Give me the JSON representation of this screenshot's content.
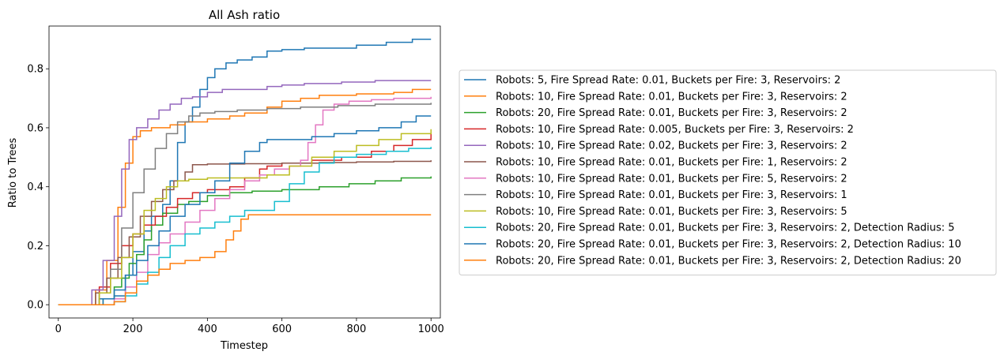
{
  "chart_data": {
    "type": "line",
    "title": "All Ash ratio",
    "xlabel": "Timestep",
    "ylabel": "Ratio to Trees",
    "xlim": [
      -25,
      1025
    ],
    "ylim": [
      -0.045,
      0.945
    ],
    "xticks": [
      "0",
      "200",
      "400",
      "600",
      "800",
      "1000"
    ],
    "yticks": [
      "0.0",
      "0.2",
      "0.4",
      "0.6",
      "0.8"
    ],
    "legend_position": "right, outside plot area",
    "grid": false,
    "series": [
      {
        "name": "Robots: 5, Fire Spread Rate: 0.01, Buckets per Fire: 3, Reservoirs: 2",
        "color": "#1f77b4",
        "points": [
          [
            0,
            0
          ],
          [
            80,
            0
          ],
          [
            110,
            0.02
          ],
          [
            150,
            0.03
          ],
          [
            180,
            0.1
          ],
          [
            200,
            0.18
          ],
          [
            230,
            0.25
          ],
          [
            250,
            0.3
          ],
          [
            280,
            0.34
          ],
          [
            300,
            0.42
          ],
          [
            320,
            0.55
          ],
          [
            340,
            0.62
          ],
          [
            360,
            0.67
          ],
          [
            380,
            0.73
          ],
          [
            400,
            0.77
          ],
          [
            420,
            0.8
          ],
          [
            450,
            0.82
          ],
          [
            480,
            0.83
          ],
          [
            520,
            0.84
          ],
          [
            560,
            0.86
          ],
          [
            600,
            0.865
          ],
          [
            660,
            0.87
          ],
          [
            720,
            0.87
          ],
          [
            800,
            0.88
          ],
          [
            880,
            0.89
          ],
          [
            950,
            0.9
          ],
          [
            1000,
            0.9
          ]
        ]
      },
      {
        "name": "Robots: 10, Fire Spread Rate: 0.01, Buckets per Fire: 3, Reservoirs: 2",
        "color": "#ff7f0e",
        "points": [
          [
            0,
            0
          ],
          [
            70,
            0
          ],
          [
            100,
            0.05
          ],
          [
            130,
            0.15
          ],
          [
            160,
            0.33
          ],
          [
            180,
            0.48
          ],
          [
            200,
            0.57
          ],
          [
            220,
            0.59
          ],
          [
            250,
            0.6
          ],
          [
            300,
            0.61
          ],
          [
            340,
            0.62
          ],
          [
            400,
            0.63
          ],
          [
            460,
            0.64
          ],
          [
            500,
            0.65
          ],
          [
            560,
            0.67
          ],
          [
            600,
            0.69
          ],
          [
            650,
            0.7
          ],
          [
            700,
            0.71
          ],
          [
            800,
            0.715
          ],
          [
            900,
            0.72
          ],
          [
            950,
            0.73
          ],
          [
            1000,
            0.73
          ]
        ]
      },
      {
        "name": "Robots: 20, Fire Spread Rate: 0.01, Buckets per Fire: 3, Reservoirs: 2",
        "color": "#2ca02c",
        "points": [
          [
            0,
            0
          ],
          [
            80,
            0
          ],
          [
            120,
            0.02
          ],
          [
            150,
            0.06
          ],
          [
            170,
            0.09
          ],
          [
            190,
            0.14
          ],
          [
            210,
            0.17
          ],
          [
            230,
            0.22
          ],
          [
            250,
            0.27
          ],
          [
            280,
            0.31
          ],
          [
            320,
            0.34
          ],
          [
            350,
            0.35
          ],
          [
            400,
            0.37
          ],
          [
            460,
            0.38
          ],
          [
            520,
            0.385
          ],
          [
            600,
            0.39
          ],
          [
            700,
            0.4
          ],
          [
            780,
            0.41
          ],
          [
            850,
            0.42
          ],
          [
            920,
            0.43
          ],
          [
            1000,
            0.435
          ]
        ]
      },
      {
        "name": "Robots: 10, Fire Spread Rate: 0.005, Buckets per Fire: 3, Reservoirs: 2",
        "color": "#d62728",
        "points": [
          [
            0,
            0
          ],
          [
            80,
            0
          ],
          [
            110,
            0.06
          ],
          [
            140,
            0.14
          ],
          [
            170,
            0.2
          ],
          [
            200,
            0.24
          ],
          [
            230,
            0.27
          ],
          [
            260,
            0.3
          ],
          [
            290,
            0.33
          ],
          [
            320,
            0.36
          ],
          [
            360,
            0.38
          ],
          [
            400,
            0.39
          ],
          [
            460,
            0.4
          ],
          [
            500,
            0.43
          ],
          [
            540,
            0.46
          ],
          [
            560,
            0.47
          ],
          [
            600,
            0.48
          ],
          [
            680,
            0.49
          ],
          [
            760,
            0.5
          ],
          [
            840,
            0.52
          ],
          [
            900,
            0.54
          ],
          [
            950,
            0.56
          ],
          [
            1000,
            0.58
          ]
        ]
      },
      {
        "name": "Robots: 10, Fire Spread Rate: 0.02, Buckets per Fire: 3, Reservoirs: 2",
        "color": "#9467bd",
        "points": [
          [
            0,
            0
          ],
          [
            60,
            0
          ],
          [
            90,
            0.05
          ],
          [
            120,
            0.15
          ],
          [
            150,
            0.3
          ],
          [
            170,
            0.46
          ],
          [
            190,
            0.56
          ],
          [
            210,
            0.6
          ],
          [
            240,
            0.63
          ],
          [
            270,
            0.66
          ],
          [
            300,
            0.68
          ],
          [
            330,
            0.7
          ],
          [
            360,
            0.705
          ],
          [
            400,
            0.72
          ],
          [
            440,
            0.73
          ],
          [
            500,
            0.73
          ],
          [
            560,
            0.74
          ],
          [
            600,
            0.745
          ],
          [
            660,
            0.75
          ],
          [
            760,
            0.755
          ],
          [
            850,
            0.76
          ],
          [
            1000,
            0.76
          ]
        ]
      },
      {
        "name": "Robots: 10, Fire Spread Rate: 0.01, Buckets per Fire: 1, Reservoirs: 2",
        "color": "#8c564b",
        "points": [
          [
            0,
            0
          ],
          [
            70,
            0
          ],
          [
            100,
            0.04
          ],
          [
            130,
            0.09
          ],
          [
            160,
            0.16
          ],
          [
            190,
            0.23
          ],
          [
            220,
            0.3
          ],
          [
            250,
            0.35
          ],
          [
            280,
            0.39
          ],
          [
            310,
            0.42
          ],
          [
            340,
            0.45
          ],
          [
            360,
            0.475
          ],
          [
            400,
            0.477
          ],
          [
            500,
            0.478
          ],
          [
            600,
            0.48
          ],
          [
            700,
            0.482
          ],
          [
            800,
            0.484
          ],
          [
            900,
            0.486
          ],
          [
            1000,
            0.49
          ]
        ]
      },
      {
        "name": "Robots: 10, Fire Spread Rate: 0.01, Buckets per Fire: 5, Reservoirs: 2",
        "color": "#e377c2",
        "points": [
          [
            0,
            0
          ],
          [
            100,
            0
          ],
          [
            150,
            0.02
          ],
          [
            180,
            0.06
          ],
          [
            210,
            0.11
          ],
          [
            240,
            0.17
          ],
          [
            270,
            0.21
          ],
          [
            300,
            0.24
          ],
          [
            340,
            0.28
          ],
          [
            380,
            0.32
          ],
          [
            420,
            0.36
          ],
          [
            460,
            0.39
          ],
          [
            500,
            0.42
          ],
          [
            540,
            0.44
          ],
          [
            580,
            0.46
          ],
          [
            620,
            0.47
          ],
          [
            650,
            0.49
          ],
          [
            670,
            0.55
          ],
          [
            690,
            0.61
          ],
          [
            710,
            0.66
          ],
          [
            740,
            0.68
          ],
          [
            780,
            0.69
          ],
          [
            840,
            0.695
          ],
          [
            900,
            0.7
          ],
          [
            1000,
            0.705
          ]
        ]
      },
      {
        "name": "Robots: 10, Fire Spread Rate: 0.01, Buckets per Fire: 3, Reservoirs: 1",
        "color": "#7f7f7f",
        "points": [
          [
            0,
            0
          ],
          [
            80,
            0
          ],
          [
            110,
            0.04
          ],
          [
            140,
            0.12
          ],
          [
            170,
            0.26
          ],
          [
            200,
            0.38
          ],
          [
            230,
            0.46
          ],
          [
            260,
            0.53
          ],
          [
            290,
            0.58
          ],
          [
            320,
            0.62
          ],
          [
            350,
            0.64
          ],
          [
            380,
            0.65
          ],
          [
            420,
            0.655
          ],
          [
            480,
            0.66
          ],
          [
            560,
            0.665
          ],
          [
            650,
            0.67
          ],
          [
            750,
            0.675
          ],
          [
            850,
            0.68
          ],
          [
            1000,
            0.685
          ]
        ]
      },
      {
        "name": "Robots: 10, Fire Spread Rate: 0.01, Buckets per Fire: 3, Reservoirs: 5",
        "color": "#bcbd22",
        "points": [
          [
            0,
            0
          ],
          [
            80,
            0
          ],
          [
            110,
            0.04
          ],
          [
            140,
            0.09
          ],
          [
            170,
            0.16
          ],
          [
            200,
            0.24
          ],
          [
            230,
            0.32
          ],
          [
            260,
            0.36
          ],
          [
            290,
            0.4
          ],
          [
            320,
            0.42
          ],
          [
            350,
            0.425
          ],
          [
            400,
            0.43
          ],
          [
            480,
            0.43
          ],
          [
            560,
            0.44
          ],
          [
            620,
            0.47
          ],
          [
            680,
            0.5
          ],
          [
            740,
            0.52
          ],
          [
            800,
            0.54
          ],
          [
            860,
            0.56
          ],
          [
            920,
            0.58
          ],
          [
            1000,
            0.595
          ]
        ]
      },
      {
        "name": "Robots: 20, Fire Spread Rate: 0.01, Buckets per Fire: 3, Reservoirs: 2, Detection Radius: 5",
        "color": "#17becf",
        "points": [
          [
            0,
            0
          ],
          [
            100,
            0
          ],
          [
            150,
            0.01
          ],
          [
            180,
            0.03
          ],
          [
            210,
            0.07
          ],
          [
            240,
            0.11
          ],
          [
            270,
            0.16
          ],
          [
            300,
            0.2
          ],
          [
            340,
            0.24
          ],
          [
            380,
            0.26
          ],
          [
            420,
            0.28
          ],
          [
            460,
            0.3
          ],
          [
            500,
            0.32
          ],
          [
            560,
            0.32
          ],
          [
            580,
            0.35
          ],
          [
            620,
            0.41
          ],
          [
            660,
            0.45
          ],
          [
            700,
            0.48
          ],
          [
            740,
            0.5
          ],
          [
            800,
            0.51
          ],
          [
            880,
            0.52
          ],
          [
            940,
            0.53
          ],
          [
            1000,
            0.535
          ]
        ]
      },
      {
        "name": "Robots: 20, Fire Spread Rate: 0.01, Buckets per Fire: 3, Reservoirs: 2, Detection Radius: 10",
        "color": "#1f77b4",
        "points": [
          [
            0,
            0
          ],
          [
            80,
            0
          ],
          [
            120,
            0.02
          ],
          [
            150,
            0.05
          ],
          [
            180,
            0.1
          ],
          [
            210,
            0.15
          ],
          [
            240,
            0.2
          ],
          [
            270,
            0.25
          ],
          [
            300,
            0.3
          ],
          [
            340,
            0.34
          ],
          [
            380,
            0.38
          ],
          [
            420,
            0.42
          ],
          [
            460,
            0.48
          ],
          [
            500,
            0.52
          ],
          [
            540,
            0.55
          ],
          [
            560,
            0.56
          ],
          [
            620,
            0.56
          ],
          [
            680,
            0.57
          ],
          [
            740,
            0.58
          ],
          [
            800,
            0.59
          ],
          [
            860,
            0.6
          ],
          [
            920,
            0.62
          ],
          [
            960,
            0.64
          ],
          [
            1000,
            0.64
          ]
        ]
      },
      {
        "name": "Robots: 20, Fire Spread Rate: 0.01, Buckets per Fire: 3, Reservoirs: 2, Detection Radius: 20",
        "color": "#ff7f0e",
        "points": [
          [
            0,
            0
          ],
          [
            120,
            0
          ],
          [
            150,
            0.01
          ],
          [
            180,
            0.04
          ],
          [
            210,
            0.08
          ],
          [
            240,
            0.1
          ],
          [
            270,
            0.12
          ],
          [
            300,
            0.14
          ],
          [
            340,
            0.15
          ],
          [
            380,
            0.16
          ],
          [
            420,
            0.18
          ],
          [
            450,
            0.22
          ],
          [
            470,
            0.25
          ],
          [
            490,
            0.29
          ],
          [
            510,
            0.305
          ],
          [
            600,
            0.305
          ],
          [
            700,
            0.305
          ],
          [
            800,
            0.305
          ],
          [
            900,
            0.305
          ],
          [
            1000,
            0.305
          ]
        ]
      }
    ]
  }
}
